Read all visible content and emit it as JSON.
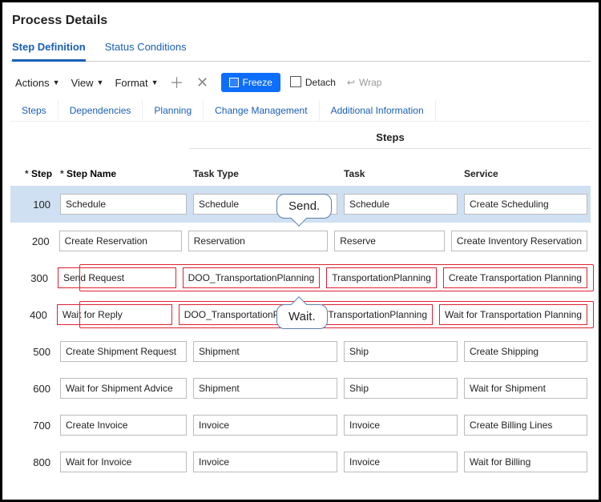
{
  "title": "Process Details",
  "tabs": {
    "stepDefinition": "Step Definition",
    "statusConditions": "Status Conditions"
  },
  "toolbar": {
    "actions": "Actions",
    "view": "View",
    "format": "Format",
    "freeze": "Freeze",
    "detach": "Detach",
    "wrap": "Wrap"
  },
  "subtabs": {
    "steps": "Steps",
    "dependencies": "Dependencies",
    "planning": "Planning",
    "change": "Change Management",
    "additional": "Additional Information"
  },
  "columns": {
    "group": "Steps",
    "step": "Step",
    "stepName": "Step Name",
    "taskType": "Task Type",
    "task": "Task",
    "service": "Service"
  },
  "callouts": {
    "send": "Send.",
    "wait": "Wait."
  },
  "rows": [
    {
      "step": "100",
      "name": "Schedule",
      "type": "Schedule",
      "task": "Schedule",
      "service": "Create Scheduling",
      "selected": true
    },
    {
      "step": "200",
      "name": "Create Reservation",
      "type": "Reservation",
      "task": "Reserve",
      "service": "Create Inventory Reservation"
    },
    {
      "step": "300",
      "name": "Send Request",
      "type": "DOO_TransportationPlanning",
      "task": "TransportationPlanning",
      "service": "Create Transportation Planning",
      "highlight": true
    },
    {
      "step": "400",
      "name": "Wait for Reply",
      "type": "DOO_TransportationPlanning",
      "task": "TransportationPlanning",
      "service": "Wait for Transportation Planning",
      "highlight": true
    },
    {
      "step": "500",
      "name": "Create Shipment Request",
      "type": "Shipment",
      "task": "Ship",
      "service": "Create Shipping"
    },
    {
      "step": "600",
      "name": "Wait for Shipment Advice",
      "type": "Shipment",
      "task": "Ship",
      "service": "Wait for Shipment"
    },
    {
      "step": "700",
      "name": "Create Invoice",
      "type": "Invoice",
      "task": "Invoice",
      "service": "Create Billing Lines"
    },
    {
      "step": "800",
      "name": "Wait for Invoice",
      "type": "Invoice",
      "task": "Invoice",
      "service": "Wait for Billing"
    }
  ],
  "colors": {
    "accent": "#0d6efd",
    "link": "#1a5fb4",
    "highlight": "#d23",
    "selectedRow": "#cfe0f2"
  }
}
